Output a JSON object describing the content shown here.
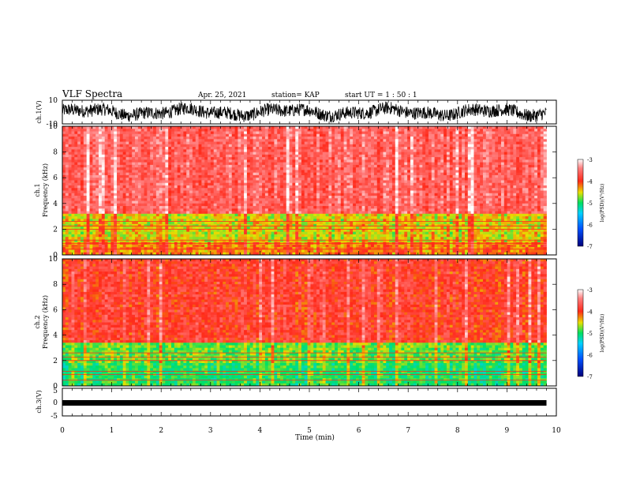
{
  "header": {
    "title": "VLF Spectra",
    "date": "Apr. 25, 2021",
    "station": "station= KAP",
    "start_time": "start  UT =   1 : 50 : 1"
  },
  "colors": {
    "low": "#00007a",
    "mid_low": "#00a0ff",
    "mid": "#00e060",
    "mid_high": "#e8e000",
    "high": "#ff2a1a",
    "max": "#ffffff"
  },
  "chart_data": [
    {
      "type": "line",
      "panel": "ch1-waveform",
      "ylabel": "ch.1(V)",
      "ylim": [
        -10,
        10
      ],
      "y_ticklabels": [
        "10",
        "-10"
      ],
      "xlim": [
        0,
        10
      ],
      "data_extent_min": 9.8,
      "description_values": {
        "typical_amplitude_v": [
          -8,
          8
        ]
      }
    },
    {
      "type": "heatmap",
      "panel": "ch1-spectrogram",
      "ylabel": "ch.1\nFrequency  (kHz)",
      "ylim": [
        0,
        10
      ],
      "y_ticklabels": [
        "0",
        "2",
        "4",
        "6",
        "8",
        "10"
      ],
      "xlim": [
        0,
        10
      ],
      "data_extent_min": 9.8,
      "colorbar": {
        "label": "log(PSD)(V²/Hz)",
        "ticks": [
          "-3",
          "-4",
          "-5",
          "-6",
          "-7"
        ],
        "range": [
          -7,
          -3
        ]
      },
      "bands_khz": [
        {
          "from": 0,
          "to": 1,
          "log_psd": -4.2
        },
        {
          "from": 1,
          "to": 3.2,
          "log_psd": -4.5
        },
        {
          "from": 3.2,
          "to": 10,
          "log_psd": -3.6
        }
      ]
    },
    {
      "type": "heatmap",
      "panel": "ch2-spectrogram",
      "ylabel": "ch.2\nFrequency  (kHz)",
      "ylim": [
        0,
        10
      ],
      "y_ticklabels": [
        "0",
        "2",
        "4",
        "6",
        "8",
        "10"
      ],
      "xlim": [
        0,
        10
      ],
      "data_extent_min": 9.8,
      "colorbar": {
        "label": "log(PSD)(V²/Hz)",
        "ticks": [
          "-3",
          "-4",
          "-5",
          "-6",
          "-7"
        ],
        "range": [
          -7,
          -3
        ]
      },
      "bands_khz": [
        {
          "from": 0,
          "to": 1.8,
          "log_psd": -5.0
        },
        {
          "from": 1.8,
          "to": 3.5,
          "log_psd": -4.8
        },
        {
          "from": 3.5,
          "to": 10,
          "log_psd": -3.9
        }
      ]
    },
    {
      "type": "line",
      "panel": "ch3-waveform",
      "ylabel": "ch.3(V)",
      "ylim": [
        -5,
        5
      ],
      "y_ticklabels": [
        "5",
        "0",
        "-5"
      ],
      "xlim": [
        0,
        10
      ],
      "data_extent_min": 9.8,
      "constant_value_v": 0
    }
  ],
  "x_axis": {
    "label": "Time  (min)",
    "ticklabels": [
      "0",
      "1",
      "2",
      "3",
      "4",
      "5",
      "6",
      "7",
      "8",
      "9",
      "10"
    ]
  }
}
